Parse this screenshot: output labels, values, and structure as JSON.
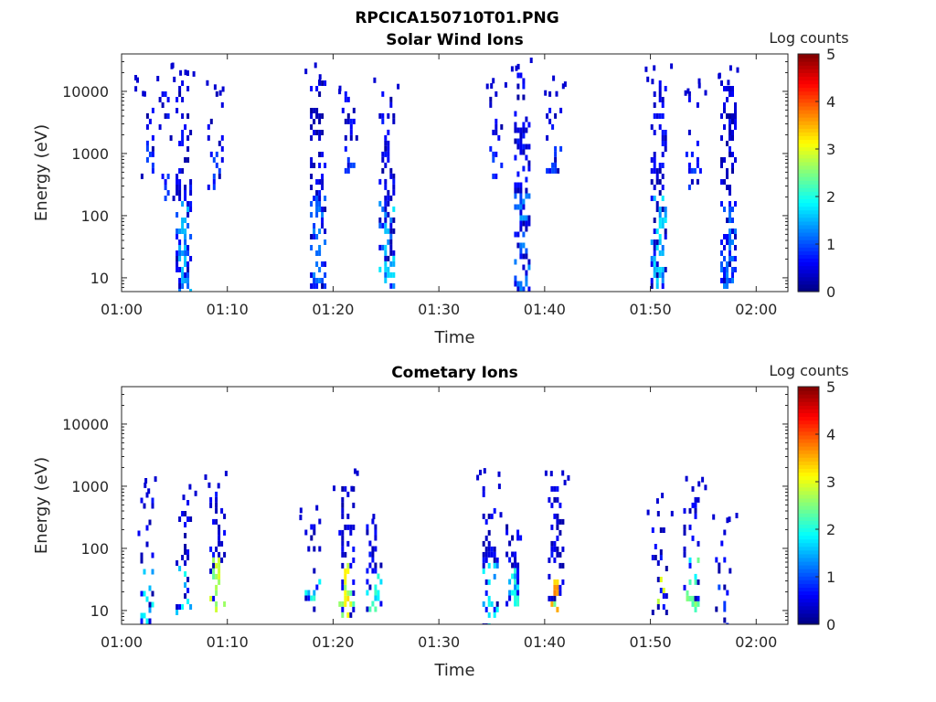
{
  "figure": {
    "title": "RPCICA150710T01.PNG"
  },
  "chart_data": [
    {
      "type": "heatmap",
      "title": "Solar Wind Ions",
      "xlabel": "Time",
      "ylabel": "Energy (eV)",
      "x_ticks": [
        "01:00",
        "01:10",
        "01:20",
        "01:30",
        "01:40",
        "01:50",
        "02:00"
      ],
      "xlim": [
        "01:00",
        "02:03"
      ],
      "y_ticks": [
        "10",
        "100",
        "1000",
        "10000"
      ],
      "ylim": [
        6,
        40000
      ],
      "yscale": "log",
      "colorbar": {
        "label": "Log counts",
        "ticks": [
          "0",
          "1",
          "2",
          "3",
          "4",
          "5"
        ],
        "range": [
          0,
          5
        ],
        "colormap": "jet"
      },
      "bursts": [
        {
          "time": "01:02.5",
          "e_low": 400,
          "e_high": 10000,
          "density": 0.25,
          "peak_log_counts": 1.0
        },
        {
          "time": "01:04.2",
          "e_low": 200,
          "e_high": 15000,
          "density": 0.15,
          "peak_log_counts": 1.0
        },
        {
          "time": "01:05.8",
          "e_low": 6,
          "e_high": 15000,
          "density": 0.6,
          "peak_log_counts": 1.6
        },
        {
          "time": "01:08.8",
          "e_low": 300,
          "e_high": 10000,
          "density": 0.3,
          "peak_log_counts": 1.0
        },
        {
          "time": "01:18.5",
          "e_low": 7,
          "e_high": 15000,
          "density": 0.6,
          "peak_log_counts": 1.3
        },
        {
          "time": "01:21.5",
          "e_low": 500,
          "e_high": 10000,
          "density": 0.35,
          "peak_log_counts": 1.0
        },
        {
          "time": "01:25.0",
          "e_low": 7,
          "e_high": 10000,
          "density": 0.6,
          "peak_log_counts": 1.8
        },
        {
          "time": "01:35.2",
          "e_low": 400,
          "e_high": 10000,
          "density": 0.2,
          "peak_log_counts": 1.0
        },
        {
          "time": "01:37.8",
          "e_low": 6,
          "e_high": 20000,
          "density": 0.6,
          "peak_log_counts": 1.4
        },
        {
          "time": "01:40.8",
          "e_low": 500,
          "e_high": 10000,
          "density": 0.35,
          "peak_log_counts": 1.0
        },
        {
          "time": "01:50.7",
          "e_low": 7,
          "e_high": 15000,
          "density": 0.6,
          "peak_log_counts": 1.8
        },
        {
          "time": "01:54.0",
          "e_low": 300,
          "e_high": 10000,
          "density": 0.3,
          "peak_log_counts": 1.0
        },
        {
          "time": "01:57.3",
          "e_low": 7,
          "e_high": 15000,
          "density": 0.6,
          "peak_log_counts": 1.3
        }
      ]
    },
    {
      "type": "heatmap",
      "title": "Cometary Ions",
      "xlabel": "Time",
      "ylabel": "Energy (eV)",
      "x_ticks": [
        "01:00",
        "01:10",
        "01:20",
        "01:30",
        "01:40",
        "01:50",
        "02:00"
      ],
      "xlim": [
        "01:00",
        "02:03"
      ],
      "y_ticks": [
        "10",
        "100",
        "1000",
        "10000"
      ],
      "ylim": [
        6,
        40000
      ],
      "yscale": "log",
      "colorbar": {
        "label": "Log counts",
        "ticks": [
          "0",
          "1",
          "2",
          "3",
          "4",
          "5"
        ],
        "range": [
          0,
          5
        ],
        "colormap": "jet"
      },
      "bursts": [
        {
          "time": "01:02.2",
          "e_low": 6,
          "e_high": 800,
          "density": 0.4,
          "peak_log_counts": 2.0
        },
        {
          "time": "01:05.8",
          "e_low": 10,
          "e_high": 600,
          "density": 0.45,
          "peak_log_counts": 2.0
        },
        {
          "time": "01:09.0",
          "e_low": 10,
          "e_high": 1000,
          "density": 0.45,
          "peak_log_counts": 3.0
        },
        {
          "time": "01:18.0",
          "e_low": 10,
          "e_high": 300,
          "density": 0.4,
          "peak_log_counts": 2.2
        },
        {
          "time": "01:21.2",
          "e_low": 8,
          "e_high": 1000,
          "density": 0.55,
          "peak_log_counts": 3.3
        },
        {
          "time": "01:23.8",
          "e_low": 10,
          "e_high": 300,
          "density": 0.6,
          "peak_log_counts": 2.3
        },
        {
          "time": "01:34.8",
          "e_low": 6,
          "e_high": 1000,
          "density": 0.5,
          "peak_log_counts": 2.0
        },
        {
          "time": "01:37.0",
          "e_low": 12,
          "e_high": 300,
          "density": 0.5,
          "peak_log_counts": 2.2
        },
        {
          "time": "01:41.0",
          "e_low": 10,
          "e_high": 1000,
          "density": 0.5,
          "peak_log_counts": 3.8
        },
        {
          "time": "01:50.8",
          "e_low": 10,
          "e_high": 400,
          "density": 0.4,
          "peak_log_counts": 3.0
        },
        {
          "time": "01:53.8",
          "e_low": 10,
          "e_high": 1000,
          "density": 0.45,
          "peak_log_counts": 2.6
        },
        {
          "time": "01:56.8",
          "e_low": 6,
          "e_high": 200,
          "density": 0.25,
          "peak_log_counts": 1.0
        }
      ]
    }
  ]
}
